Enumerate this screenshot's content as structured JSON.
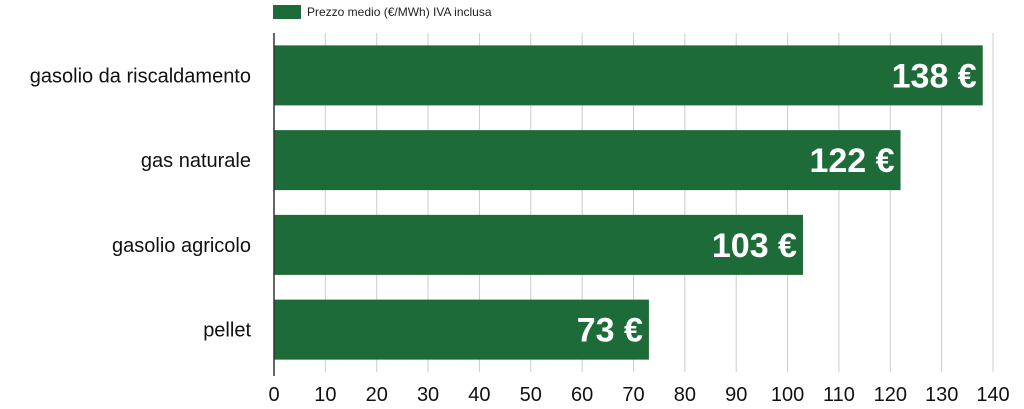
{
  "chart_data": {
    "type": "bar",
    "orientation": "horizontal",
    "categories": [
      "gasolio da riscaldamento",
      "gas naturale",
      "gasolio agricolo",
      "pellet"
    ],
    "series": [
      {
        "name": "Prezzo medio (€/MWh) IVA inclusa",
        "values": [
          138,
          122,
          103,
          73
        ]
      }
    ],
    "data_labels": [
      "138 €",
      "122 €",
      "103 €",
      "73 €"
    ],
    "xlim": [
      0,
      140
    ],
    "xticks": [
      "0",
      "10",
      "20",
      "30",
      "40",
      "50",
      "60",
      "70",
      "80",
      "90",
      "100",
      "110",
      "120",
      "130",
      "140"
    ],
    "grid": true,
    "legend_position": "top-left",
    "bar_color": "#1e6b3a"
  }
}
